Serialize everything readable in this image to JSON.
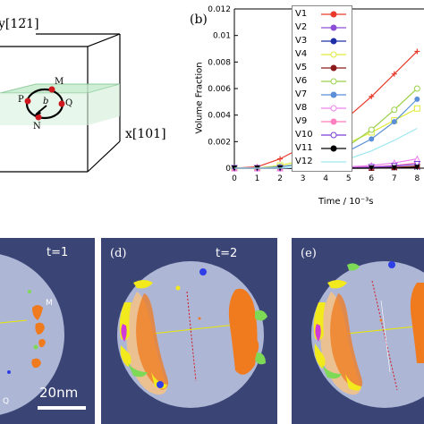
{
  "schematic": {
    "y_axis_label": "y[12̅1]",
    "x_axis_label": "x[101]",
    "points": [
      "M",
      "P",
      "Q",
      "N"
    ],
    "b_label": "b"
  },
  "panel_b": {
    "label": "(b)"
  },
  "chart_data": {
    "type": "line",
    "title": "",
    "xlabel": "Time / 10⁻³s",
    "ylabel": "Volume Fraction",
    "xlim": [
      0,
      8.3
    ],
    "ylim": [
      0,
      0.01
    ],
    "x_ticks": [
      "0",
      "1",
      "2",
      "3",
      "4",
      "5",
      "6",
      "7",
      "8"
    ],
    "y_ticks": [
      "0",
      "0.002",
      "0.004",
      "0.006",
      "0.008",
      "0.01",
      "0.012"
    ],
    "grid": false,
    "legend_position": "top-right",
    "x": [
      0,
      1,
      2,
      3,
      4,
      5,
      6,
      7,
      8
    ],
    "series": [
      {
        "name": "V1",
        "color": "#e8392b",
        "marker": "plus",
        "values": [
          0,
          0.0001,
          0.0007,
          0.0016,
          0.0027,
          0.0039,
          0.0054,
          0.0071,
          0.0088
        ]
      },
      {
        "name": "V2",
        "color": "#8a4fd6",
        "marker": "x",
        "values": [
          0,
          0,
          0,
          0,
          0,
          0,
          2e-05,
          5e-05,
          0.0001
        ]
      },
      {
        "name": "V3",
        "color": "#1f2fa8",
        "marker": "star",
        "values": [
          0,
          0,
          0,
          0,
          0,
          0,
          2e-05,
          5e-05,
          0.0001
        ]
      },
      {
        "name": "V4",
        "color": "#e0ea3a",
        "marker": "square-o",
        "values": [
          0,
          0,
          0.0002,
          0.0006,
          0.0012,
          0.0019,
          0.0027,
          0.0036,
          0.0045
        ]
      },
      {
        "name": "V5",
        "color": "#8b1a1a",
        "marker": "square",
        "values": [
          0,
          0,
          0,
          0,
          0,
          0,
          0,
          5e-05,
          0.00015
        ]
      },
      {
        "name": "V6",
        "color": "#9ad14a",
        "marker": "circle-o",
        "values": [
          0,
          0,
          0.0001,
          0.0004,
          0.0009,
          0.0017,
          0.0029,
          0.0044,
          0.006
        ]
      },
      {
        "name": "V7",
        "color": "#5b8fd8",
        "marker": "circle",
        "values": [
          0,
          0,
          0.0001,
          0.0003,
          0.0007,
          0.0013,
          0.0022,
          0.0035,
          0.0052
        ]
      },
      {
        "name": "V8",
        "color": "#ee82ee",
        "marker": "triangle-o",
        "values": [
          0,
          0,
          0,
          2e-05,
          5e-05,
          0.0001,
          0.0002,
          0.0004,
          0.0007
        ]
      },
      {
        "name": "V9",
        "color": "#ff7fbf",
        "marker": "triangle",
        "values": [
          0,
          0,
          0,
          0,
          2e-05,
          5e-05,
          0.0001,
          0.0002,
          0.0004
        ]
      },
      {
        "name": "V10",
        "color": "#7a3fd6",
        "marker": "tri-down-o",
        "values": [
          0,
          0,
          0,
          0,
          0,
          3e-05,
          8e-05,
          0.00015,
          0.0003
        ]
      },
      {
        "name": "V11",
        "color": "#000000",
        "marker": "tri-down",
        "values": [
          0,
          0,
          0,
          0,
          0,
          0,
          0,
          2e-05,
          5e-05
        ]
      },
      {
        "name": "V12",
        "color": "#9fe8f0",
        "marker": "none",
        "values": [
          0,
          0,
          0,
          0.0001,
          0.0003,
          0.0007,
          0.0013,
          0.0021,
          0.003
        ]
      }
    ]
  },
  "panel_c": {
    "time_label": "t=1",
    "point_m": "M",
    "point_q": "Q",
    "scale_label": "20nm"
  },
  "panel_d": {
    "label": "(d)",
    "time_label": "t=2"
  },
  "panel_e": {
    "label": "(e)"
  },
  "colors": {
    "panel_bg": "#3a4576",
    "disk": "#aeb6d6",
    "orange": "#f07a1e",
    "yellow": "#f2ea1c",
    "green": "#7ed957",
    "blue": "#2f3fe8",
    "magenta": "#d23ad8",
    "red_line": "#d0181f"
  }
}
